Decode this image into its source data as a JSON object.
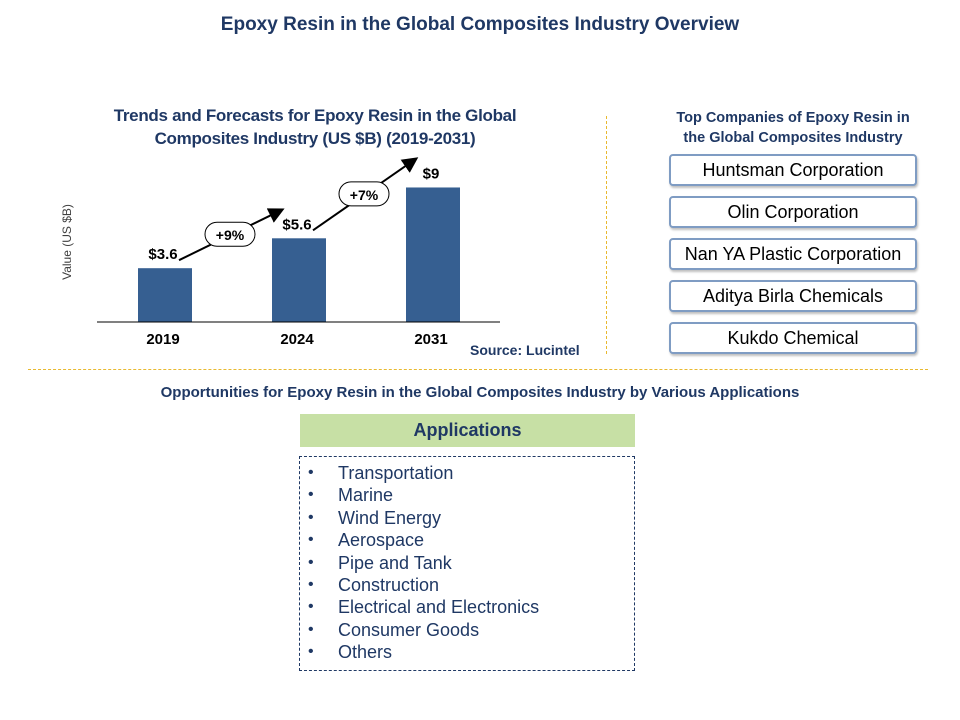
{
  "page": {
    "title": "Epoxy Resin in the Global Composites Industry Overview",
    "source": "Source: Lucintel"
  },
  "chart_data": {
    "type": "bar",
    "title_line1": "Trends and Forecasts for Epoxy Resin in the Global",
    "title_line2": "Composites Industry (US $B) (2019-2031)",
    "ylabel": "Value (US $B)",
    "xlabel": "",
    "categories": [
      "2019",
      "2024",
      "2031"
    ],
    "values": [
      3.6,
      5.6,
      9
    ],
    "value_labels": [
      "$3.6",
      "$5.6",
      "$9"
    ],
    "ylim": [
      0,
      9.5
    ],
    "bar_color": "#365f91",
    "growth_annotations": [
      {
        "label": "+9%",
        "from": "2019",
        "to": "2024"
      },
      {
        "label": "+7%",
        "from": "2024",
        "to": "2031"
      }
    ],
    "grid": false,
    "legend": "none"
  },
  "companies": {
    "title_line1": "Top Companies of Epoxy Resin in",
    "title_line2": "the Global Composites Industry",
    "items": [
      "Huntsman Corporation",
      "Olin Corporation",
      "Nan YA Plastic Corporation",
      "Aditya Birla Chemicals",
      "Kukdo Chemical"
    ]
  },
  "opportunities": {
    "title": "Opportunities for Epoxy Resin in the Global Composites Industry by Various Applications",
    "header": "Applications",
    "items": [
      "Transportation",
      "Marine",
      "Wind Energy",
      "Aerospace",
      "Pipe and Tank",
      "Construction",
      "Electrical and Electronics",
      "Consumer Goods",
      "Others"
    ]
  },
  "colors": {
    "title": "#1f3864",
    "bar": "#365f91",
    "divider": "#e8b930",
    "applications_header": "#c7e0a5",
    "company_border": "#7f9cc3"
  }
}
